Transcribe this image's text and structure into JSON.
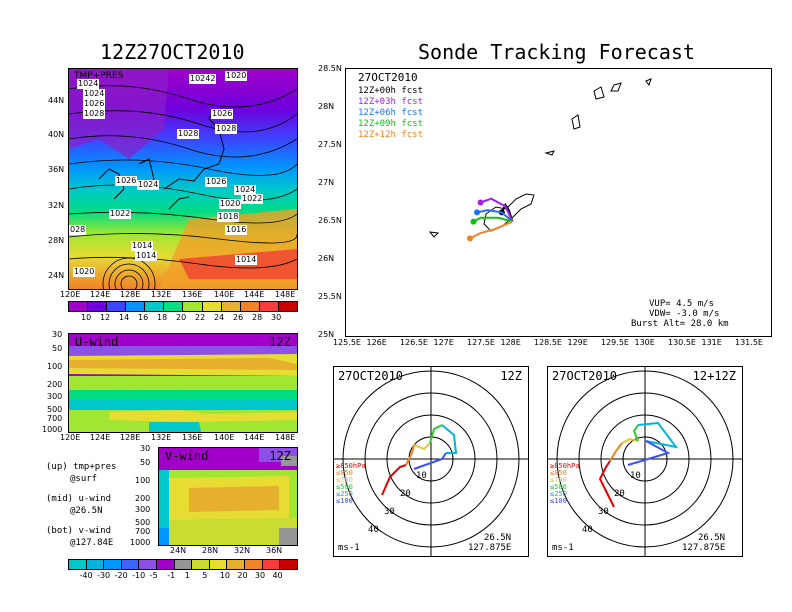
{
  "titles": {
    "left": "12Z27OCT2010",
    "right": "Sonde Tracking Forecast"
  },
  "map_top_left": {
    "label": "TMP+PRES",
    "lat_ticks": [
      "44N",
      "40N",
      "36N",
      "32N",
      "28N",
      "24N"
    ],
    "lon_ticks": [
      "120E",
      "124E",
      "128E",
      "132E",
      "136E",
      "140E",
      "144E",
      "148E"
    ],
    "contour_labels": [
      {
        "text": "1024"
      },
      {
        "text": "10242"
      },
      {
        "text": "1020"
      },
      {
        "text": "1024"
      },
      {
        "text": "1026"
      },
      {
        "text": "1028"
      },
      {
        "text": "1026"
      },
      {
        "text": "1028"
      },
      {
        "text": "1028"
      },
      {
        "text": "1026"
      },
      {
        "text": "1024"
      },
      {
        "text": "1026"
      },
      {
        "text": "1024"
      },
      {
        "text": "1022"
      },
      {
        "text": "1022"
      },
      {
        "text": "1020"
      },
      {
        "text": "1018"
      },
      {
        "text": "1016"
      },
      {
        "text": "028"
      },
      {
        "text": "1014"
      },
      {
        "text": "1014"
      },
      {
        "text": "1014"
      },
      {
        "text": "1020"
      }
    ]
  },
  "colorbar_temp": {
    "labels": [
      "10",
      "12",
      "14",
      "16",
      "18",
      "20",
      "22",
      "24",
      "26",
      "28",
      "30"
    ],
    "colors": [
      "#a000c8",
      "#6e00dc",
      "#3c46ff",
      "#0096ff",
      "#00c8c8",
      "#00dc82",
      "#a0e632",
      "#e6dc32",
      "#e6af2d",
      "#f08228",
      "#fa3c3c",
      "#c80000"
    ]
  },
  "u_wind": {
    "label": "U-wind",
    "time": "12Z",
    "p_ticks": [
      "30",
      "50",
      "100",
      "200",
      "300",
      "500",
      "700",
      "1000"
    ],
    "lon_ticks": [
      "120E",
      "124E",
      "128E",
      "132E",
      "136E",
      "140E",
      "144E",
      "148E"
    ]
  },
  "v_wind": {
    "label": "V-wind",
    "time": "12Z",
    "p_ticks": [
      "30",
      "50",
      "100",
      "200",
      "300",
      "500",
      "700",
      "1000"
    ],
    "lat_ticks": [
      "24N",
      "28N",
      "32N",
      "36N"
    ]
  },
  "notes": [
    "(up) tmp+pres",
    "@surf",
    "(mid) u-wind",
    "@26.5N",
    "(bot) v-wind",
    "@127.84E"
  ],
  "colorbar_wind": {
    "labels": [
      "-40",
      "-30",
      "-20",
      "-10",
      "-5",
      "-1",
      "1",
      "5",
      "10",
      "20",
      "30",
      "40"
    ],
    "colors": [
      "#00c8c8",
      "#00b4dc",
      "#0096ff",
      "#3c64ff",
      "#8c50e6",
      "#a000c8",
      "#969696",
      "#c8dc32",
      "#e6dc32",
      "#e6af2d",
      "#f08228",
      "#fa3c3c",
      "#c80000"
    ]
  },
  "tracking_map": {
    "date": "27OCT2010",
    "forecasts": [
      {
        "label": "12Z+00h fcst",
        "color": "#000000"
      },
      {
        "label": "12Z+03h fcst",
        "color": "#a020f0"
      },
      {
        "label": "12Z+06h fcst",
        "color": "#1e6eff"
      },
      {
        "label": "12Z+09h fcst",
        "color": "#10c010"
      },
      {
        "label": "12Z+12h fcst",
        "color": "#f08228"
      }
    ],
    "lat_ticks": [
      "28.5N",
      "28N",
      "27.5N",
      "27N",
      "26.5N",
      "26N",
      "25.5N",
      "25N"
    ],
    "lon_ticks": [
      "125.5E",
      "126E",
      "126.5E",
      "127E",
      "127.5E",
      "128E",
      "128.5E",
      "129E",
      "129.5E",
      "130E",
      "130.5E",
      "131E",
      "131.5E"
    ],
    "params": [
      "VUP= 4.5 m/s",
      "VDW= -3.0 m/s",
      "Burst Alt= 28.0 km"
    ]
  },
  "hodographs": [
    {
      "date": "27OCT2010",
      "time": "12Z",
      "rings": [
        "10",
        "20",
        "30",
        "40"
      ],
      "unit": "ms-1",
      "lat": "26.5N",
      "lon": "127.875E",
      "levels": [
        {
          "label": "≥850hPa",
          "color": "#e60000"
        },
        {
          "label": "≤850",
          "color": "#f08228"
        },
        {
          "label": "≤700",
          "color": "#e6c832"
        },
        {
          "label": "≤500",
          "color": "#32c832"
        },
        {
          "label": "≤250",
          "color": "#00b4dc"
        },
        {
          "label": "≤100",
          "color": "#3c50ff"
        }
      ]
    },
    {
      "date": "27OCT2010",
      "time": "12+12Z",
      "rings": [
        "10",
        "20",
        "30",
        "40"
      ],
      "unit": "ms-1",
      "lat": "26.5N",
      "lon": "127.875E",
      "levels": [
        {
          "label": "≥850hPa",
          "color": "#e60000"
        },
        {
          "label": "≤850",
          "color": "#f08228"
        },
        {
          "label": "≤700",
          "color": "#e6c832"
        },
        {
          "label": "≤500",
          "color": "#32c832"
        },
        {
          "label": "≤250",
          "color": "#00b4dc"
        },
        {
          "label": "≤100",
          "color": "#3c50ff"
        }
      ]
    }
  ],
  "chart_data": [
    {
      "type": "heatmap",
      "title": "12Z27OCT2010",
      "subtitle": "TMP+PRES",
      "xlim": [
        120,
        148
      ],
      "ylim": [
        22,
        46
      ],
      "colorbar": [
        10,
        12,
        14,
        16,
        18,
        20,
        22,
        24,
        26,
        28,
        30
      ]
    },
    {
      "type": "heatmap",
      "title": "U-wind",
      "xlim": [
        120,
        148
      ],
      "ylim": [
        1000,
        30
      ]
    },
    {
      "type": "heatmap",
      "title": "V-wind",
      "xlim": [
        22,
        38
      ],
      "ylim": [
        1000,
        30
      ],
      "colorbar": [
        -40,
        -30,
        -20,
        -10,
        -5,
        -1,
        1,
        5,
        10,
        20,
        30,
        40
      ]
    },
    {
      "type": "line",
      "title": "Sonde Tracking Forecast",
      "xlim": [
        125.5,
        131.5
      ],
      "ylim": [
        25,
        28.5
      ],
      "series": [
        {
          "name": "12Z+00h fcst",
          "x": [
            127.85,
            127.8,
            127.75,
            127.7
          ],
          "y": [
            26.5,
            26.65,
            26.72,
            26.62
          ]
        },
        {
          "name": "12Z+03h fcst",
          "x": [
            127.85,
            127.75,
            127.55,
            127.4
          ],
          "y": [
            26.5,
            26.7,
            26.8,
            26.75
          ]
        },
        {
          "name": "12Z+06h fcst",
          "x": [
            127.85,
            127.7,
            127.5,
            127.35
          ],
          "y": [
            26.5,
            26.62,
            26.65,
            26.62
          ]
        },
        {
          "name": "12Z+09h fcst",
          "x": [
            127.85,
            127.65,
            127.4,
            127.3
          ],
          "y": [
            26.5,
            26.55,
            26.55,
            26.5
          ]
        },
        {
          "name": "12Z+12h fcst",
          "x": [
            127.85,
            127.6,
            127.4,
            127.25
          ],
          "y": [
            26.5,
            26.4,
            26.35,
            26.28
          ]
        }
      ]
    }
  ]
}
